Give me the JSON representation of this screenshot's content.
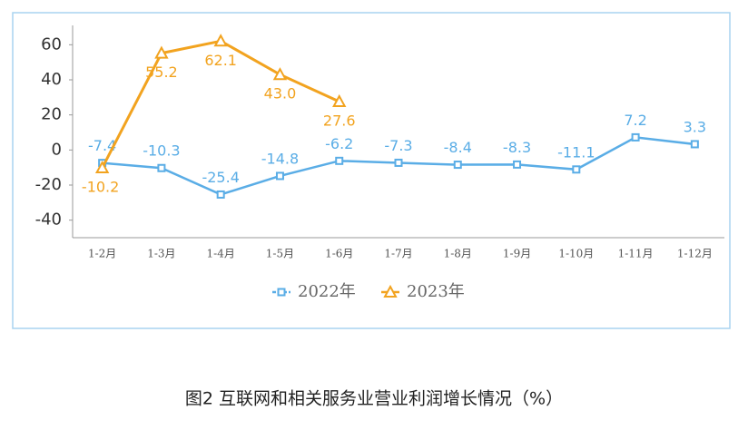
{
  "chart_data": {
    "type": "line",
    "title": "图2  互联网和相关服务业营业利润增长情况（%）",
    "categories": [
      "1-2月",
      "1-3月",
      "1-4月",
      "1-5月",
      "1-6月",
      "1-7月",
      "1-8月",
      "1-9月",
      "1-10月",
      "1-11月",
      "1-12月"
    ],
    "series": [
      {
        "name": "2022年",
        "color": "#5aade6",
        "marker": "square",
        "values": [
          -7.4,
          -10.3,
          -25.4,
          -14.8,
          -6.2,
          -7.3,
          -8.4,
          -8.3,
          -11.1,
          7.2,
          3.3
        ],
        "value_labels": [
          "-7.4",
          "-10.3",
          "-25.4",
          "-14.8",
          "-6.2",
          "-7.3",
          "-8.4",
          "-8.3",
          "-11.1",
          "7.2",
          "3.3"
        ]
      },
      {
        "name": "2023年",
        "color": "#f2a31f",
        "marker": "triangle",
        "values": [
          -10.2,
          55.2,
          62.1,
          43.0,
          27.6,
          null,
          null,
          null,
          null,
          null,
          null
        ],
        "value_labels": [
          "-10.2",
          "55.2",
          "62.1",
          "43.0",
          "27.6",
          null,
          null,
          null,
          null,
          null,
          null
        ]
      }
    ],
    "ylim": [
      -50,
      70
    ],
    "yticks": [
      60,
      40,
      20,
      0,
      -20,
      -40
    ]
  }
}
